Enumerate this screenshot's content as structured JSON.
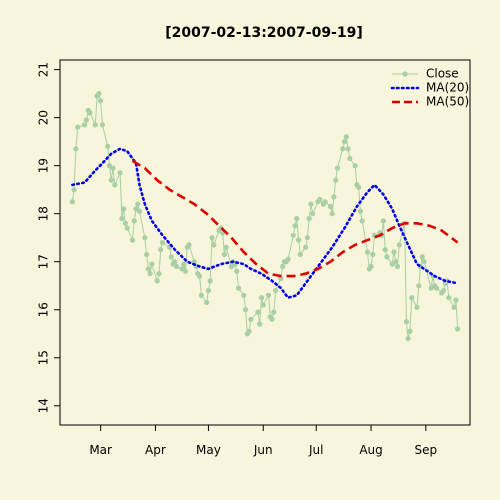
{
  "chart_data": {
    "type": "line",
    "title": "[2007-02-13:2007-09-19]",
    "xlabel": "",
    "ylabel": "",
    "x_start": "2007-02-13",
    "x_end": "2007-09-19",
    "xlim": [
      "2007-02-06",
      "2007-09-26"
    ],
    "ylim": [
      13.6,
      21.2
    ],
    "y_ticks": [
      14,
      15,
      16,
      17,
      18,
      19,
      20,
      21
    ],
    "x_ticks": [
      {
        "label": "Mar",
        "date": "2007-03-01"
      },
      {
        "label": "Apr",
        "date": "2007-04-01"
      },
      {
        "label": "May",
        "date": "2007-05-01"
      },
      {
        "label": "Jun",
        "date": "2007-06-01"
      },
      {
        "label": "Jul",
        "date": "2007-07-01"
      },
      {
        "label": "Aug",
        "date": "2007-08-01"
      },
      {
        "label": "Sep",
        "date": "2007-09-01"
      }
    ],
    "legend": {
      "position": "top-right",
      "entries": [
        "Close",
        "MA(20)",
        "MA(50)"
      ]
    },
    "grid": false,
    "colors": {
      "background": "#f7f5dc",
      "close": "#a9cfa4",
      "ma20": "#0000ee",
      "ma50": "#dd0000"
    },
    "series": [
      {
        "name": "Close",
        "style": "line+points",
        "points": [
          [
            "2007-02-13",
            18.25
          ],
          [
            "2007-02-14",
            18.5
          ],
          [
            "2007-02-15",
            19.35
          ],
          [
            "2007-02-16",
            19.8
          ],
          [
            "2007-02-20",
            19.85
          ],
          [
            "2007-02-21",
            19.95
          ],
          [
            "2007-02-22",
            20.15
          ],
          [
            "2007-02-23",
            20.1
          ],
          [
            "2007-02-26",
            19.85
          ],
          [
            "2007-02-27",
            20.45
          ],
          [
            "2007-02-28",
            20.5
          ],
          [
            "2007-03-01",
            20.35
          ],
          [
            "2007-03-02",
            19.85
          ],
          [
            "2007-03-05",
            19.4
          ],
          [
            "2007-03-06",
            19.0
          ],
          [
            "2007-03-07",
            18.7
          ],
          [
            "2007-03-08",
            18.95
          ],
          [
            "2007-03-09",
            18.6
          ],
          [
            "2007-03-12",
            18.85
          ],
          [
            "2007-03-13",
            17.9
          ],
          [
            "2007-03-14",
            18.1
          ],
          [
            "2007-03-15",
            17.8
          ],
          [
            "2007-03-16",
            17.7
          ],
          [
            "2007-03-19",
            17.45
          ],
          [
            "2007-03-20",
            17.85
          ],
          [
            "2007-03-21",
            18.1
          ],
          [
            "2007-03-22",
            18.2
          ],
          [
            "2007-03-23",
            18.05
          ],
          [
            "2007-03-26",
            17.5
          ],
          [
            "2007-03-27",
            17.15
          ],
          [
            "2007-03-28",
            16.85
          ],
          [
            "2007-03-29",
            16.75
          ],
          [
            "2007-03-30",
            16.95
          ],
          [
            "2007-04-02",
            16.6
          ],
          [
            "2007-04-03",
            16.75
          ],
          [
            "2007-04-04",
            17.25
          ],
          [
            "2007-04-05",
            17.4
          ],
          [
            "2007-04-09",
            17.3
          ],
          [
            "2007-04-10",
            17.1
          ],
          [
            "2007-04-11",
            16.95
          ],
          [
            "2007-04-12",
            17.0
          ],
          [
            "2007-04-13",
            16.9
          ],
          [
            "2007-04-16",
            16.85
          ],
          [
            "2007-04-17",
            16.95
          ],
          [
            "2007-04-18",
            16.8
          ],
          [
            "2007-04-19",
            17.3
          ],
          [
            "2007-04-20",
            17.35
          ],
          [
            "2007-04-23",
            17.0
          ],
          [
            "2007-04-24",
            16.9
          ],
          [
            "2007-04-25",
            16.75
          ],
          [
            "2007-04-26",
            16.7
          ],
          [
            "2007-04-27",
            16.3
          ],
          [
            "2007-04-30",
            16.15
          ],
          [
            "2007-05-01",
            16.4
          ],
          [
            "2007-05-02",
            16.6
          ],
          [
            "2007-05-03",
            17.5
          ],
          [
            "2007-05-04",
            17.35
          ],
          [
            "2007-05-07",
            17.65
          ],
          [
            "2007-05-08",
            17.7
          ],
          [
            "2007-05-09",
            17.6
          ],
          [
            "2007-05-10",
            17.15
          ],
          [
            "2007-05-11",
            17.3
          ],
          [
            "2007-05-14",
            16.9
          ],
          [
            "2007-05-15",
            17.0
          ],
          [
            "2007-05-16",
            16.95
          ],
          [
            "2007-05-17",
            16.8
          ],
          [
            "2007-05-18",
            16.45
          ],
          [
            "2007-05-21",
            16.3
          ],
          [
            "2007-05-22",
            16.0
          ],
          [
            "2007-05-23",
            15.5
          ],
          [
            "2007-05-24",
            15.55
          ],
          [
            "2007-05-25",
            15.8
          ],
          [
            "2007-05-29",
            15.95
          ],
          [
            "2007-05-30",
            15.7
          ],
          [
            "2007-05-31",
            16.25
          ],
          [
            "2007-06-01",
            16.1
          ],
          [
            "2007-06-04",
            16.3
          ],
          [
            "2007-06-05",
            15.85
          ],
          [
            "2007-06-06",
            15.8
          ],
          [
            "2007-06-07",
            15.95
          ],
          [
            "2007-06-08",
            16.4
          ],
          [
            "2007-06-11",
            16.65
          ],
          [
            "2007-06-12",
            16.9
          ],
          [
            "2007-06-13",
            17.0
          ],
          [
            "2007-06-14",
            17.0
          ],
          [
            "2007-06-15",
            17.05
          ],
          [
            "2007-06-18",
            17.55
          ],
          [
            "2007-06-19",
            17.75
          ],
          [
            "2007-06-20",
            17.9
          ],
          [
            "2007-06-21",
            17.45
          ],
          [
            "2007-06-22",
            17.15
          ],
          [
            "2007-06-25",
            17.3
          ],
          [
            "2007-06-26",
            17.5
          ],
          [
            "2007-06-27",
            17.9
          ],
          [
            "2007-06-28",
            18.2
          ],
          [
            "2007-06-29",
            18.0
          ],
          [
            "2007-07-02",
            18.25
          ],
          [
            "2007-07-03",
            18.3
          ],
          [
            "2007-07-05",
            18.2
          ],
          [
            "2007-07-06",
            18.25
          ],
          [
            "2007-07-09",
            18.15
          ],
          [
            "2007-07-10",
            18.0
          ],
          [
            "2007-07-11",
            18.35
          ],
          [
            "2007-07-12",
            18.7
          ],
          [
            "2007-07-13",
            18.95
          ],
          [
            "2007-07-16",
            19.35
          ],
          [
            "2007-07-17",
            19.5
          ],
          [
            "2007-07-18",
            19.6
          ],
          [
            "2007-07-19",
            19.35
          ],
          [
            "2007-07-20",
            19.15
          ],
          [
            "2007-07-23",
            19.0
          ],
          [
            "2007-07-24",
            18.6
          ],
          [
            "2007-07-25",
            18.55
          ],
          [
            "2007-07-26",
            18.05
          ],
          [
            "2007-07-27",
            17.85
          ],
          [
            "2007-07-30",
            17.2
          ],
          [
            "2007-07-31",
            16.85
          ],
          [
            "2007-08-01",
            16.9
          ],
          [
            "2007-08-02",
            17.15
          ],
          [
            "2007-08-03",
            17.55
          ],
          [
            "2007-08-06",
            17.6
          ],
          [
            "2007-08-07",
            17.55
          ],
          [
            "2007-08-08",
            17.85
          ],
          [
            "2007-08-09",
            17.25
          ],
          [
            "2007-08-10",
            17.1
          ],
          [
            "2007-08-13",
            16.95
          ],
          [
            "2007-08-14",
            17.2
          ],
          [
            "2007-08-15",
            17.0
          ],
          [
            "2007-08-16",
            16.9
          ],
          [
            "2007-08-17",
            17.35
          ],
          [
            "2007-08-20",
            17.8
          ],
          [
            "2007-08-21",
            15.75
          ],
          [
            "2007-08-22",
            15.4
          ],
          [
            "2007-08-23",
            15.55
          ],
          [
            "2007-08-24",
            16.25
          ],
          [
            "2007-08-27",
            16.05
          ],
          [
            "2007-08-28",
            16.5
          ],
          [
            "2007-08-29",
            16.9
          ],
          [
            "2007-08-30",
            17.1
          ],
          [
            "2007-08-31",
            17.0
          ],
          [
            "2007-09-04",
            16.45
          ],
          [
            "2007-09-05",
            16.7
          ],
          [
            "2007-09-06",
            16.5
          ],
          [
            "2007-09-07",
            16.45
          ],
          [
            "2007-09-10",
            16.35
          ],
          [
            "2007-09-11",
            16.4
          ],
          [
            "2007-09-12",
            16.55
          ],
          [
            "2007-09-13",
            16.6
          ],
          [
            "2007-09-14",
            16.25
          ],
          [
            "2007-09-17",
            16.05
          ],
          [
            "2007-09-18",
            16.2
          ],
          [
            "2007-09-19",
            15.6
          ]
        ]
      },
      {
        "name": "MA(20)",
        "style": "dotted",
        "points": [
          [
            "2007-02-13",
            18.6
          ],
          [
            "2007-02-20",
            18.65
          ],
          [
            "2007-02-26",
            18.9
          ],
          [
            "2007-03-02",
            19.05
          ],
          [
            "2007-03-07",
            19.25
          ],
          [
            "2007-03-12",
            19.35
          ],
          [
            "2007-03-16",
            19.3
          ],
          [
            "2007-03-21",
            19.05
          ],
          [
            "2007-03-23",
            18.6
          ],
          [
            "2007-03-26",
            18.2
          ],
          [
            "2007-03-30",
            17.85
          ],
          [
            "2007-04-05",
            17.55
          ],
          [
            "2007-04-12",
            17.25
          ],
          [
            "2007-04-19",
            17.0
          ],
          [
            "2007-04-26",
            16.9
          ],
          [
            "2007-05-01",
            16.85
          ],
          [
            "2007-05-08",
            16.95
          ],
          [
            "2007-05-15",
            17.0
          ],
          [
            "2007-05-21",
            16.95
          ],
          [
            "2007-05-25",
            16.85
          ],
          [
            "2007-05-31",
            16.75
          ],
          [
            "2007-06-06",
            16.6
          ],
          [
            "2007-06-11",
            16.45
          ],
          [
            "2007-06-15",
            16.25
          ],
          [
            "2007-06-20",
            16.3
          ],
          [
            "2007-06-27",
            16.65
          ],
          [
            "2007-07-03",
            16.95
          ],
          [
            "2007-07-10",
            17.3
          ],
          [
            "2007-07-17",
            17.7
          ],
          [
            "2007-07-24",
            18.15
          ],
          [
            "2007-07-30",
            18.45
          ],
          [
            "2007-08-03",
            18.6
          ],
          [
            "2007-08-08",
            18.4
          ],
          [
            "2007-08-13",
            18.1
          ],
          [
            "2007-08-17",
            17.75
          ],
          [
            "2007-08-22",
            17.35
          ],
          [
            "2007-08-27",
            16.95
          ],
          [
            "2007-08-31",
            16.85
          ],
          [
            "2007-09-06",
            16.7
          ],
          [
            "2007-09-12",
            16.6
          ],
          [
            "2007-09-19",
            16.55
          ]
        ]
      },
      {
        "name": "MA(50)",
        "style": "dashed",
        "points": [
          [
            "2007-03-19",
            19.1
          ],
          [
            "2007-03-26",
            18.95
          ],
          [
            "2007-04-02",
            18.7
          ],
          [
            "2007-04-09",
            18.5
          ],
          [
            "2007-04-16",
            18.35
          ],
          [
            "2007-04-23",
            18.2
          ],
          [
            "2007-04-30",
            18.0
          ],
          [
            "2007-05-07",
            17.75
          ],
          [
            "2007-05-14",
            17.5
          ],
          [
            "2007-05-21",
            17.2
          ],
          [
            "2007-05-28",
            16.95
          ],
          [
            "2007-06-04",
            16.75
          ],
          [
            "2007-06-11",
            16.7
          ],
          [
            "2007-06-18",
            16.7
          ],
          [
            "2007-06-25",
            16.75
          ],
          [
            "2007-07-02",
            16.85
          ],
          [
            "2007-07-09",
            17.0
          ],
          [
            "2007-07-16",
            17.2
          ],
          [
            "2007-07-23",
            17.35
          ],
          [
            "2007-07-30",
            17.45
          ],
          [
            "2007-08-06",
            17.55
          ],
          [
            "2007-08-13",
            17.7
          ],
          [
            "2007-08-20",
            17.8
          ],
          [
            "2007-08-27",
            17.8
          ],
          [
            "2007-09-03",
            17.75
          ],
          [
            "2007-09-10",
            17.65
          ],
          [
            "2007-09-19",
            17.4
          ]
        ]
      }
    ]
  }
}
